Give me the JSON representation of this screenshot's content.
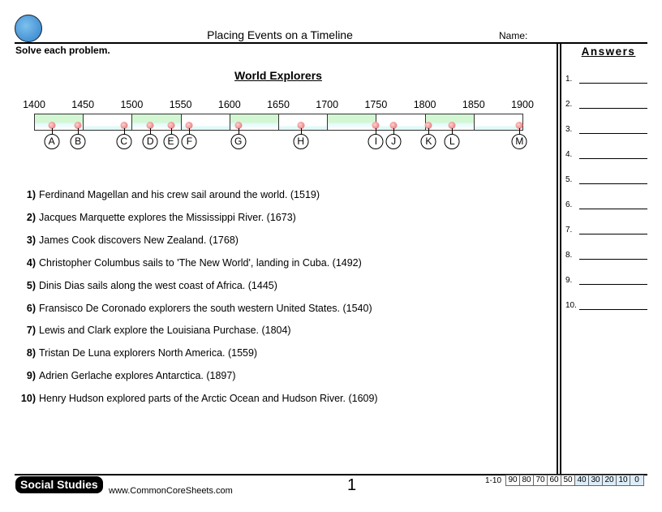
{
  "header": {
    "title": "Placing Events on a Timeline",
    "name_label": "Name:",
    "instructions": "Solve each problem."
  },
  "worksheet": {
    "subtitle": "World Explorers",
    "ticks": [
      "1400",
      "1450",
      "1500",
      "1550",
      "1600",
      "1650",
      "1700",
      "1750",
      "1800",
      "1850",
      "1900"
    ],
    "markers": [
      {
        "label": "A",
        "year": 1418
      },
      {
        "label": "B",
        "year": 1445
      },
      {
        "label": "C",
        "year": 1492
      },
      {
        "label": "D",
        "year": 1519
      },
      {
        "label": "E",
        "year": 1540
      },
      {
        "label": "F",
        "year": 1559
      },
      {
        "label": "G",
        "year": 1609
      },
      {
        "label": "H",
        "year": 1673
      },
      {
        "label": "I",
        "year": 1750
      },
      {
        "label": "J",
        "year": 1768
      },
      {
        "label": "K",
        "year": 1804
      },
      {
        "label": "L",
        "year": 1828
      },
      {
        "label": "M",
        "year": 1897
      }
    ],
    "questions": [
      {
        "num": "1)",
        "text": "Ferdinand Magellan and his crew sail around the world. (1519)"
      },
      {
        "num": "2)",
        "text": "Jacques Marquette explores the Mississippi River. (1673)"
      },
      {
        "num": "3)",
        "text": "James Cook discovers New Zealand. (1768)"
      },
      {
        "num": "4)",
        "text": "Christopher Columbus sails to 'The New World', landing in Cuba. (1492)"
      },
      {
        "num": "5)",
        "text": "Dinis Dias sails along the west coast of Africa. (1445)"
      },
      {
        "num": "6)",
        "text": "Fransisco De Coronado explorers the south western United States. (1540)"
      },
      {
        "num": "7)",
        "text": "Lewis and Clark explore the Louisiana Purchase. (1804)"
      },
      {
        "num": "8)",
        "text": "Tristan De Luna explorers North America. (1559)"
      },
      {
        "num": "9)",
        "text": "Adrien Gerlache explores Antarctica. (1897)"
      },
      {
        "num": "10)",
        "text": "Henry Hudson explored parts of the Arctic Ocean and Hudson River. (1609)"
      }
    ]
  },
  "answers": {
    "heading": "Answers",
    "items": [
      "1.",
      "2.",
      "3.",
      "4.",
      "5.",
      "6.",
      "7.",
      "8.",
      "9.",
      "10."
    ]
  },
  "footer": {
    "brand": "Social Studies",
    "site": "www.CommonCoreSheets.com",
    "page": "1",
    "score_key": "1-10",
    "scores": [
      "90",
      "80",
      "70",
      "60",
      "50",
      "40",
      "30",
      "20",
      "10",
      "0"
    ]
  }
}
